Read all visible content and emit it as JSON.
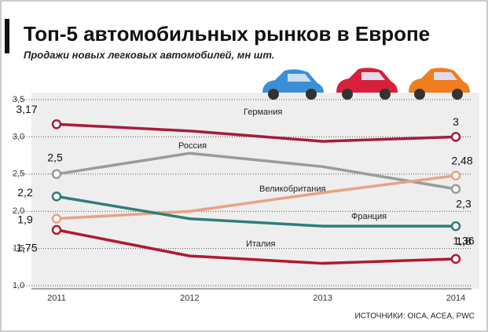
{
  "chart_data": {
    "type": "line",
    "title": "Топ-5 автомобильных рынков в Европе",
    "subtitle": "Продажи новых легковых автомобилей, мн шт.",
    "source": "ИСТОЧНИКИ: OICA, ACEA, PWC",
    "categories": [
      "2011",
      "2012",
      "2013",
      "2014"
    ],
    "ylim": [
      1.0,
      3.5
    ],
    "yticks": [
      {
        "value": 1.0,
        "label": "1,0"
      },
      {
        "value": 1.5,
        "label": "1,5"
      },
      {
        "value": 2.0,
        "label": "2,0"
      },
      {
        "value": 2.5,
        "label": "2,5"
      },
      {
        "value": 3.0,
        "label": "3,0"
      },
      {
        "value": 3.5,
        "label": "3,5"
      }
    ],
    "grid": true,
    "series": [
      {
        "name": "Германия",
        "color": "#a51c3e",
        "values": [
          3.17,
          3.08,
          2.94,
          3.0
        ],
        "value_labels": [
          "3,17",
          null,
          null,
          "3"
        ]
      },
      {
        "name": "Россия",
        "color": "#9b9b9b",
        "values": [
          2.5,
          2.78,
          2.6,
          2.3
        ],
        "value_labels": [
          "2,5",
          null,
          null,
          "2,3"
        ]
      },
      {
        "name": "Великобритания",
        "color": "#e9a283",
        "values": [
          1.9,
          2.0,
          2.25,
          2.48
        ],
        "value_labels": [
          "1,9",
          null,
          null,
          "2,48"
        ]
      },
      {
        "name": "Франция",
        "color": "#2f7e78",
        "values": [
          2.2,
          1.9,
          1.8,
          1.8
        ],
        "value_labels": [
          "2,2",
          null,
          null,
          "1,8"
        ]
      },
      {
        "name": "Италия",
        "color": "#b2182e",
        "values": [
          1.75,
          1.4,
          1.3,
          1.36
        ],
        "value_labels": [
          "1,75",
          null,
          null,
          "1,36"
        ]
      }
    ]
  }
}
